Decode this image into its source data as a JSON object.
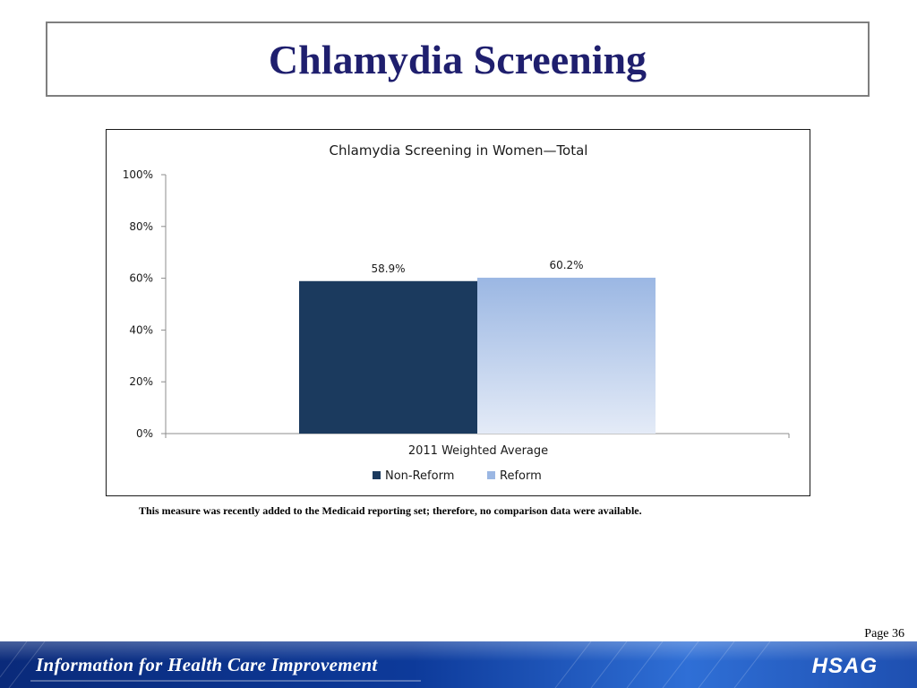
{
  "slide": {
    "title": "Chlamydia Screening",
    "note": "This measure was recently added to the Medicaid reporting set; therefore, no comparison data were available.",
    "page_label": "Page 36"
  },
  "footer": {
    "tagline": "Information for Health Care Improvement",
    "logo_text": "HSAG"
  },
  "colors": {
    "title": "#1f1f6e",
    "non_reform": "#1b3a5e",
    "reform_top": "#9bb7e3",
    "reform_bottom": "#e4ebf7",
    "footer_dark": "#0a2a7a",
    "footer_light": "#2f6fd6"
  },
  "chart_data": {
    "type": "bar",
    "title": "Chlamydia Screening in Women—Total",
    "categories": [
      "2011 Weighted Average"
    ],
    "series": [
      {
        "name": "Non-Reform",
        "values": [
          58.9
        ],
        "labels": [
          "58.9%"
        ]
      },
      {
        "name": "Reform",
        "values": [
          60.2
        ],
        "labels": [
          "60.2%"
        ]
      }
    ],
    "ylim": [
      0,
      100
    ],
    "yticks": [
      "0%",
      "20%",
      "40%",
      "60%",
      "80%",
      "100%"
    ],
    "ytick_values": [
      0,
      20,
      40,
      60,
      80,
      100
    ],
    "xlabel": "",
    "ylabel": "",
    "grid": false,
    "legend": "bottom"
  }
}
